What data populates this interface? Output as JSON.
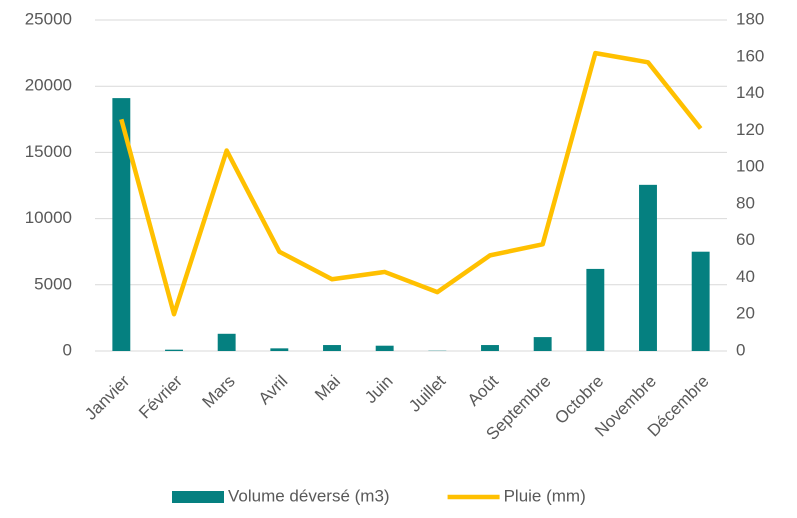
{
  "chart_data": {
    "type": "bar",
    "categories": [
      "Janvier",
      "Février",
      "Mars",
      "Avril",
      "Mai",
      "Juin",
      "Juillet",
      "Août",
      "Septembre",
      "Octobre",
      "Novembre",
      "Décembre"
    ],
    "series": [
      {
        "name": "Volume déversé (m3)",
        "color": "#058080",
        "type": "bar",
        "values": [
          19100,
          100,
          1300,
          200,
          450,
          400,
          20,
          450,
          1050,
          6200,
          12550,
          7500
        ]
      },
      {
        "name": "Pluie (mm)",
        "color": "#ffc000",
        "type": "line",
        "axis": "y2",
        "values": [
          126,
          20,
          109,
          54,
          39,
          43,
          32,
          52,
          58,
          162,
          157,
          121
        ]
      }
    ],
    "ylim": [
      0,
      25000
    ],
    "yticks": [
      0,
      5000,
      10000,
      15000,
      20000,
      25000
    ],
    "y2lim": [
      0,
      180
    ],
    "y2ticks": [
      0,
      20,
      40,
      60,
      80,
      100,
      120,
      140,
      160,
      180
    ],
    "grid": true,
    "legend": "bottom"
  }
}
